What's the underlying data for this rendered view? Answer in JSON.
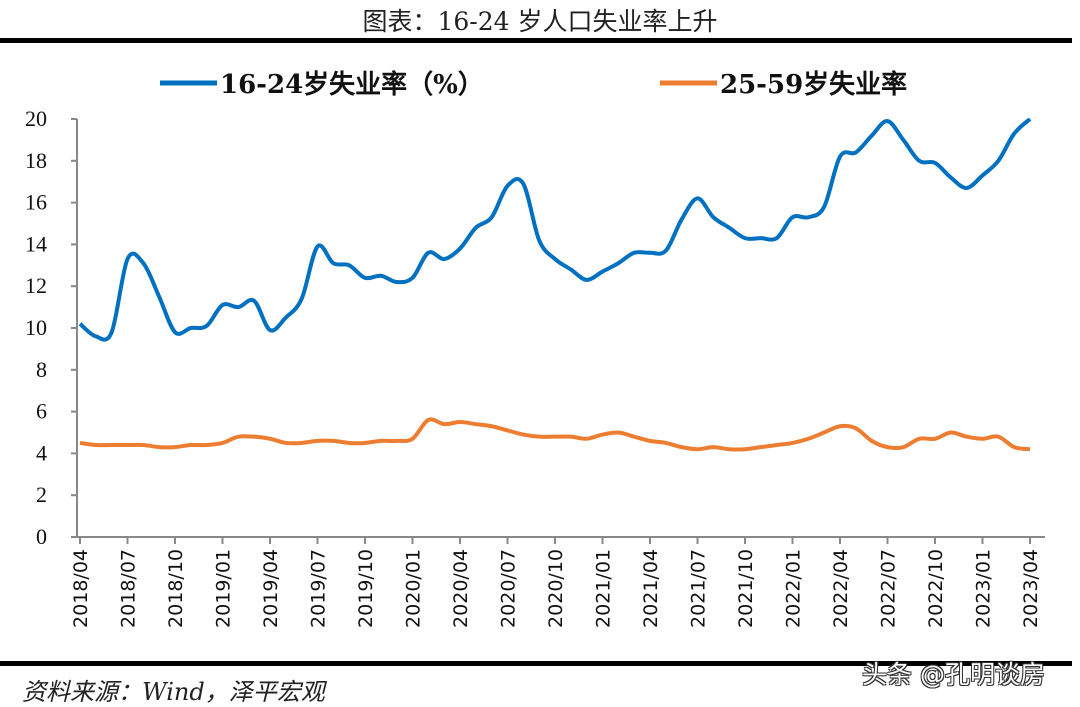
{
  "title": "图表：16-24 岁人口失业率上升",
  "source": "资料来源：Wind，泽平宏观",
  "watermark": "头条 @孔明谈房",
  "chart_data": {
    "type": "line",
    "title": "图表：16-24 岁人口失业率上升",
    "xlabel": "",
    "ylabel": "",
    "ylim": [
      0,
      20
    ],
    "yticks": [
      0,
      2,
      4,
      6,
      8,
      10,
      12,
      14,
      16,
      18,
      20
    ],
    "grid": false,
    "legend_position": "top",
    "x": [
      "2018/04",
      "2018/05",
      "2018/06",
      "2018/07",
      "2018/08",
      "2018/09",
      "2018/10",
      "2018/11",
      "2018/12",
      "2019/01",
      "2019/02",
      "2019/03",
      "2019/04",
      "2019/05",
      "2019/06",
      "2019/07",
      "2019/08",
      "2019/09",
      "2019/10",
      "2019/11",
      "2019/12",
      "2020/01",
      "2020/02",
      "2020/03",
      "2020/04",
      "2020/05",
      "2020/06",
      "2020/07",
      "2020/08",
      "2020/09",
      "2020/10",
      "2020/11",
      "2020/12",
      "2021/01",
      "2021/02",
      "2021/03",
      "2021/04",
      "2021/05",
      "2021/06",
      "2021/07",
      "2021/08",
      "2021/09",
      "2021/10",
      "2021/11",
      "2021/12",
      "2022/01",
      "2022/02",
      "2022/03",
      "2022/04",
      "2022/05",
      "2022/06",
      "2022/07",
      "2022/08",
      "2022/09",
      "2022/10",
      "2022/11",
      "2022/12",
      "2023/01",
      "2023/02",
      "2023/03",
      "2023/04"
    ],
    "xticks": [
      "2018/04",
      "2018/07",
      "2018/10",
      "2019/01",
      "2019/04",
      "2019/07",
      "2019/10",
      "2020/01",
      "2020/04",
      "2020/07",
      "2020/10",
      "2021/01",
      "2021/04",
      "2021/07",
      "2021/10",
      "2022/01",
      "2022/04",
      "2022/07",
      "2022/10",
      "2023/01",
      "2023/04"
    ],
    "series": [
      {
        "name": "16-24岁失业率（%）",
        "color": "#0070C0",
        "values": [
          10.2,
          9.6,
          9.8,
          13.3,
          13.1,
          11.5,
          9.8,
          10.0,
          10.1,
          11.1,
          11.0,
          11.3,
          9.9,
          10.5,
          11.4,
          13.9,
          13.1,
          13.0,
          12.4,
          12.5,
          12.2,
          12.4,
          13.6,
          13.3,
          13.8,
          14.8,
          15.3,
          16.8,
          16.9,
          14.2,
          13.3,
          12.8,
          12.3,
          12.7,
          13.1,
          13.6,
          13.6,
          13.7,
          15.2,
          16.2,
          15.3,
          14.8,
          14.3,
          14.3,
          14.3,
          15.3,
          15.3,
          15.8,
          18.2,
          18.4,
          19.2,
          19.9,
          19.0,
          18.0,
          17.9,
          17.2,
          16.7,
          17.3,
          18.0,
          19.3,
          20.0
        ]
      },
      {
        "name": "25-59岁失业率",
        "color": "#ED7D31",
        "values": [
          4.5,
          4.4,
          4.4,
          4.4,
          4.4,
          4.3,
          4.3,
          4.4,
          4.4,
          4.5,
          4.8,
          4.8,
          4.7,
          4.5,
          4.5,
          4.6,
          4.6,
          4.5,
          4.5,
          4.6,
          4.6,
          4.7,
          5.6,
          5.4,
          5.5,
          5.4,
          5.3,
          5.1,
          4.9,
          4.8,
          4.8,
          4.8,
          4.7,
          4.9,
          5.0,
          4.8,
          4.6,
          4.5,
          4.3,
          4.2,
          4.3,
          4.2,
          4.2,
          4.3,
          4.4,
          4.5,
          4.7,
          5.0,
          5.3,
          5.2,
          4.6,
          4.3,
          4.3,
          4.7,
          4.7,
          5.0,
          4.8,
          4.7,
          4.8,
          4.3,
          4.2
        ]
      }
    ]
  }
}
